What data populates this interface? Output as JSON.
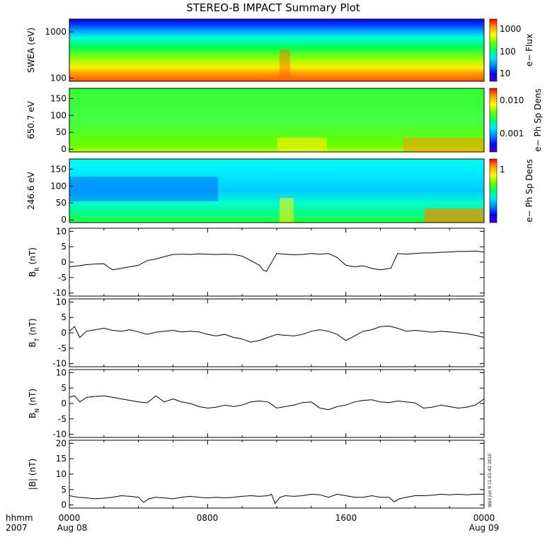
{
  "title": "STEREO-B IMPACT Summary Plot",
  "stamp": "Wed Jun  9 11:01:42 2010",
  "x_axis": {
    "row1": [
      "0000",
      "0800",
      "1600",
      "0000"
    ],
    "row2": [
      "Aug 08",
      "Aug 09"
    ],
    "label_row1": "hhmm",
    "label_row2": "2007"
  },
  "colors": {
    "spectrogram_ramp": [
      "#4400cc",
      "#0000ff",
      "#0088ff",
      "#00e8ff",
      "#00ff66",
      "#66ff00",
      "#ffff00",
      "#ff9900",
      "#ff0000"
    ]
  },
  "chart_data": [
    {
      "type": "heatmap",
      "name": "swea",
      "ylabel": "SWEA (eV)",
      "colorbar_label": "e− Flux",
      "y_scale": "log",
      "y_ticks": [
        "1000",
        "100"
      ],
      "colorbar_ticks": [
        "1000",
        "100",
        "10"
      ],
      "x_range_hours": [
        0,
        24
      ],
      "description_levels": "flux decreases with energy: red near 100 eV, green near 600 eV, blue above 1500 eV"
    },
    {
      "type": "heatmap",
      "name": "pad-650",
      "ylabel": "650.7 eV",
      "colorbar_label": "e− Ph Sp Dens",
      "y_ticks": [
        "150",
        "100",
        "50",
        "0"
      ],
      "ylim": [
        0,
        180
      ],
      "colorbar_ticks": [
        "0.010",
        "0.001"
      ]
    },
    {
      "type": "heatmap",
      "name": "pad-246",
      "ylabel": "246.6 eV",
      "colorbar_label": "e− Ph Sp Dens",
      "y_ticks": [
        "150",
        "100",
        "50",
        "0"
      ],
      "ylim": [
        0,
        180
      ],
      "colorbar_ticks": [
        "1"
      ]
    },
    {
      "type": "line",
      "name": "br",
      "ylabel_main": "B",
      "ylabel_sub": "R",
      "ylabel_unit": " (nT)",
      "ylim": [
        -11,
        11
      ],
      "y_ticks": [
        "10",
        "5",
        "0",
        "-5",
        "-10"
      ],
      "x": [
        0,
        0.5,
        1,
        1.5,
        2,
        2.5,
        3,
        3.5,
        4,
        4.5,
        5,
        5.5,
        6,
        6.5,
        7,
        7.5,
        8,
        8.5,
        9,
        9.5,
        10,
        10.5,
        11,
        11.2,
        11.4,
        12,
        12.5,
        13,
        13.5,
        14,
        14.5,
        15,
        15.5,
        16,
        16.5,
        17,
        17.5,
        18,
        18.3,
        18.6,
        19,
        19.5,
        20,
        20.5,
        21,
        21.5,
        22,
        22.5,
        23,
        23.5,
        24
      ],
      "values": [
        -1.5,
        -1.2,
        -0.8,
        -0.6,
        -0.5,
        -2.5,
        -2.0,
        -1.5,
        -1.0,
        0.5,
        1.0,
        1.8,
        2.5,
        2.6,
        2.5,
        2.7,
        2.6,
        2.5,
        2.6,
        2.5,
        2.0,
        0.5,
        -1.0,
        -2.5,
        -3.0,
        2.8,
        2.6,
        2.4,
        2.5,
        2.8,
        2.6,
        2.8,
        1.5,
        -1.0,
        -1.5,
        -1.2,
        -2.0,
        -2.5,
        -2.2,
        -2.0,
        2.8,
        2.6,
        2.8,
        3.0,
        3.0,
        3.2,
        3.3,
        3.5,
        3.5,
        3.6,
        3.3
      ]
    },
    {
      "type": "line",
      "name": "bt",
      "ylabel_main": "B",
      "ylabel_sub": "T",
      "ylabel_unit": " (nT)",
      "ylim": [
        -11,
        11
      ],
      "y_ticks": [
        "10",
        "5",
        "0",
        "-5",
        "-10"
      ],
      "x": [
        0,
        0.3,
        0.6,
        1,
        1.5,
        2,
        2.5,
        3,
        3.5,
        4,
        4.5,
        5,
        5.5,
        6,
        6.5,
        7,
        7.5,
        8,
        8.5,
        9,
        9.5,
        10,
        10.5,
        11,
        11.5,
        12,
        12.5,
        13,
        13.5,
        14,
        14.5,
        15,
        15.5,
        16,
        16.5,
        17,
        17.5,
        18,
        18.5,
        19,
        19.5,
        20,
        20.5,
        21,
        21.5,
        22,
        22.5,
        23,
        23.5,
        24
      ],
      "values": [
        0.5,
        2.0,
        -1.5,
        0.5,
        1.0,
        1.5,
        0.8,
        0.5,
        1.0,
        0.3,
        -0.5,
        0.2,
        0.5,
        0.8,
        0.3,
        0.5,
        0.3,
        -0.5,
        -1.0,
        -0.5,
        -1.5,
        -2.0,
        -3.0,
        -2.5,
        -1.5,
        -0.5,
        -0.8,
        -1.0,
        -0.5,
        0.5,
        1.0,
        0.5,
        -0.5,
        -2.5,
        -1.0,
        0.5,
        1.0,
        2.0,
        2.2,
        1.5,
        0.5,
        0.8,
        0.5,
        0.2,
        0.5,
        0.3,
        0.0,
        -0.3,
        -0.8,
        -1.5
      ]
    },
    {
      "type": "line",
      "name": "bn",
      "ylabel_main": "B",
      "ylabel_sub": "N",
      "ylabel_unit": " (nT)",
      "ylim": [
        -11,
        11
      ],
      "y_ticks": [
        "10",
        "5",
        "0",
        "-5",
        "-10"
      ],
      "x": [
        0,
        0.3,
        0.6,
        1,
        1.5,
        2,
        2.5,
        3,
        3.5,
        4,
        4.5,
        5,
        5.5,
        6,
        6.5,
        7,
        7.5,
        8,
        8.5,
        9,
        9.5,
        10,
        10.5,
        11,
        11.5,
        12,
        12.5,
        13,
        13.5,
        14,
        14.5,
        15,
        15.5,
        16,
        16.5,
        17,
        17.5,
        18,
        18.5,
        19,
        19.5,
        20,
        20.5,
        21,
        21.5,
        22,
        22.5,
        23,
        23.5,
        24
      ],
      "values": [
        2.0,
        2.5,
        0.5,
        2.0,
        2.3,
        2.5,
        2.0,
        1.5,
        1.0,
        0.5,
        0.2,
        2.5,
        0.5,
        1.5,
        0.5,
        0.0,
        -1.0,
        -1.5,
        -1.2,
        -0.5,
        -1.0,
        -0.5,
        0.5,
        0.8,
        0.5,
        -1.5,
        -1.0,
        -0.5,
        0.3,
        0.5,
        -1.5,
        -2.0,
        -1.0,
        -0.5,
        0.5,
        1.0,
        1.2,
        0.5,
        0.3,
        0.8,
        0.5,
        0.2,
        -1.5,
        -1.2,
        -0.5,
        -1.0,
        -1.5,
        -1.2,
        -0.5,
        1.5
      ]
    },
    {
      "type": "line",
      "name": "bmag",
      "ylabel_main": "|B|",
      "ylabel_sub": "",
      "ylabel_unit": " (nT)",
      "ylim": [
        -1,
        21
      ],
      "y_ticks": [
        "20",
        "15",
        "10",
        "5",
        "0"
      ],
      "x": [
        0,
        0.5,
        1,
        1.5,
        2,
        2.5,
        3,
        3.5,
        4,
        4.3,
        4.6,
        5,
        5.5,
        6,
        6.5,
        7,
        7.5,
        8,
        8.5,
        9,
        9.5,
        10,
        10.5,
        11,
        11.5,
        11.7,
        11.9,
        12.2,
        12.5,
        13,
        13.5,
        14,
        14.5,
        15,
        15.5,
        16,
        16.5,
        17,
        17.5,
        18,
        18.5,
        18.8,
        19.1,
        19.5,
        20,
        20.5,
        21,
        21.5,
        22,
        22.5,
        23,
        23.5,
        24
      ],
      "values": [
        3.0,
        2.5,
        2.3,
        2.0,
        2.2,
        2.5,
        3.0,
        2.8,
        2.5,
        0.8,
        2.0,
        2.5,
        2.3,
        2.0,
        2.5,
        2.8,
        2.5,
        2.3,
        2.5,
        2.3,
        2.5,
        2.8,
        3.0,
        2.8,
        3.0,
        3.5,
        0.5,
        2.5,
        3.0,
        2.8,
        3.0,
        3.5,
        3.3,
        2.5,
        3.5,
        3.0,
        2.5,
        2.5,
        3.0,
        2.5,
        2.5,
        1.0,
        2.0,
        2.5,
        3.0,
        3.0,
        3.2,
        3.5,
        3.3,
        3.5,
        3.3,
        3.5,
        3.5
      ]
    }
  ]
}
